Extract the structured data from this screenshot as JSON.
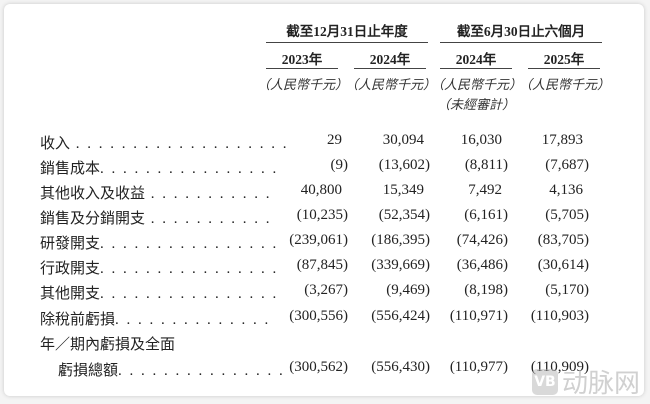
{
  "header": {
    "groups": [
      "截至12月31日止年度",
      "截至6月30日止六個月"
    ],
    "years": [
      "2023年",
      "2024年",
      "2024年",
      "2025年"
    ],
    "units": [
      "（人民幣千元）",
      "（人民幣千元）",
      "（人民幣千元）",
      "（人民幣千元）"
    ],
    "unaudited": "（未經審計）"
  },
  "rows": [
    {
      "label": "收入",
      "dots": " . . . . . . . . . . . . . . . . . . .",
      "values": [
        "29",
        "30,094",
        "16,030",
        "17,893"
      ]
    },
    {
      "label": "銷售成本",
      "dots": ". . . . . . . . . . . . . . . .",
      "values": [
        "(9)",
        "(13,602)",
        "(8,811)",
        "(7,687)"
      ]
    },
    {
      "label": "其他收入及收益",
      "dots": " . . . . . . . . . . .",
      "values": [
        "40,800",
        "15,349",
        "7,492",
        "4,136"
      ]
    },
    {
      "label": "銷售及分銷開支",
      "dots": " . . . . . . . . . . .",
      "values": [
        "(10,235)",
        "(52,354)",
        "(6,161)",
        "(5,705)"
      ]
    },
    {
      "label": "研發開支",
      "dots": ". . . . . . . . . . . . . . . .",
      "values": [
        "(239,061)",
        "(186,395)",
        "(74,426)",
        "(83,705)"
      ]
    },
    {
      "label": "行政開支",
      "dots": ". . . . . . . . . . . . . . . .",
      "values": [
        "(87,845)",
        "(339,669)",
        "(36,486)",
        "(30,614)"
      ]
    },
    {
      "label": "其他開支",
      "dots": ". . . . . . . . . . . . . . . .",
      "values": [
        "(3,267)",
        "(9,469)",
        "(8,198)",
        "(5,170)"
      ]
    },
    {
      "label": "除稅前虧損",
      "dots": ". . . . . . . . . . . . . .",
      "values": [
        "(300,556)",
        "(556,424)",
        "(110,971)",
        "(110,903)"
      ]
    }
  ],
  "last_row": {
    "label_line1": "年／期內虧損及全面",
    "label_line2": "虧損總額",
    "dots": ". . . . . . . . . . . . . . .",
    "values": [
      "(300,562)",
      "(556,430)",
      "(110,977)",
      "(110,909)"
    ]
  },
  "watermark": {
    "logo": "VB",
    "text": "动脉网"
  }
}
